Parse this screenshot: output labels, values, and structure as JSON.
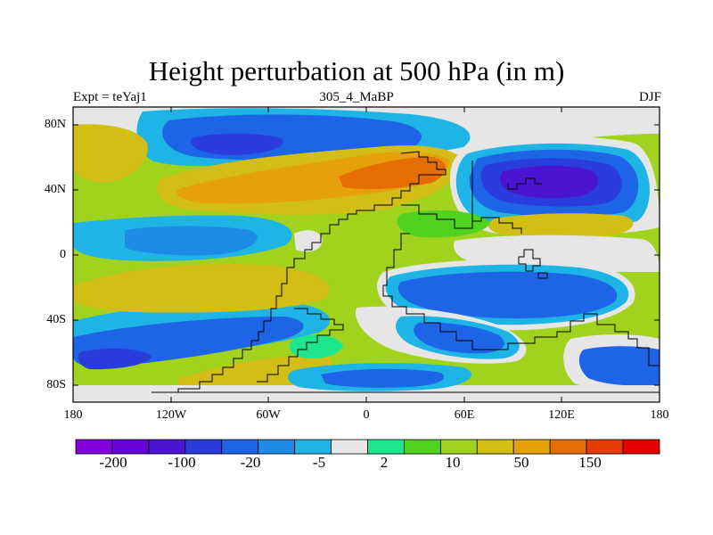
{
  "title": "Height perturbation at 500 hPa (in m)",
  "subtitle_left": "Expt = teYaj1",
  "subtitle_center": "305_4_MaBP",
  "subtitle_right": "DJF",
  "y_axis_labels": [
    "80N",
    "40N",
    "0",
    "40S",
    "80S"
  ],
  "x_axis_labels": [
    "180",
    "120W",
    "60W",
    "0",
    "60E",
    "120E",
    "180"
  ],
  "colorbar": {
    "colors": [
      "#8200dc",
      "#6a00d8",
      "#4a14d2",
      "#2a3cdc",
      "#1e64e6",
      "#1e8ce6",
      "#1eb4e6",
      "#e6e6e6",
      "#1ee68c",
      "#50d21e",
      "#a0d21e",
      "#d2be14",
      "#e6a00a",
      "#e66e00",
      "#e63c00",
      "#e60000"
    ],
    "labels": [
      "-200",
      "-100",
      "-20",
      "-5",
      "2",
      "10",
      "50",
      "150"
    ]
  },
  "map_colors": {
    "ocean_bg": "#a0d21e",
    "neutral": "#e6e6e6",
    "cyan": "#1eb4e6",
    "light_blue": "#1e8ce6",
    "blue": "#1e64e6",
    "dark_blue": "#2a3cdc",
    "violet": "#4a14d2",
    "yellow": "#d2be14",
    "orange": "#e6a00a",
    "dark_orange": "#e66e00",
    "green": "#50d21e",
    "teal": "#1ee68c"
  }
}
